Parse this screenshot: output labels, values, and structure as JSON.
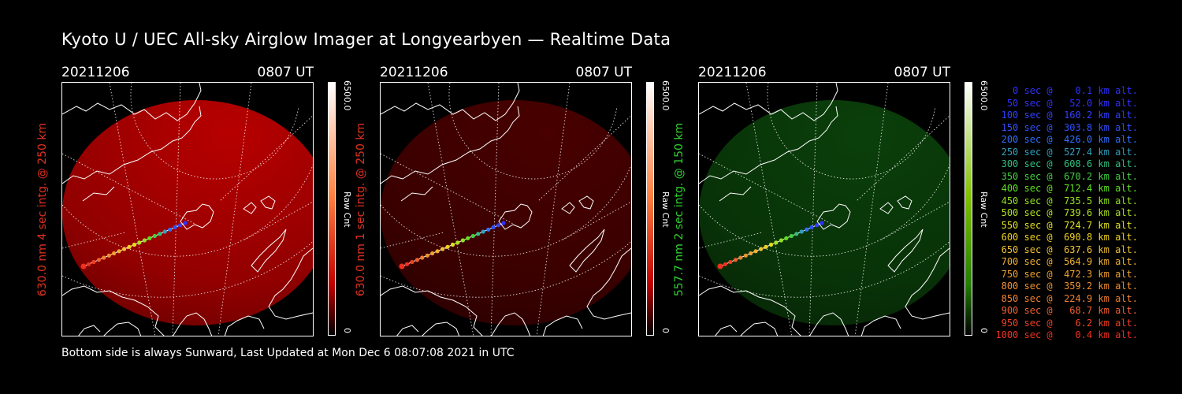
{
  "title": "Kyoto U / UEC All-sky Airglow Imager at Longyearbyen — Realtime Data",
  "footer": "Bottom side is always Sunward, Last Updated at Mon Dec  6 08:07:08 2021 in UTC",
  "panels": [
    {
      "date": "20211206",
      "time": "0807 UT",
      "ylabel": "630.0 nm 4 sec intg. @ 250 km",
      "label_color": "#e03020",
      "cbar_max": "6500.0",
      "cbar_min": "0",
      "cbar_unit": "Raw Cnt",
      "glow": "#c00000",
      "glow_strength": 0.95,
      "bar_top": "#ffffff",
      "bar_mid": "#ff8040",
      "bar_bot": "#c00000"
    },
    {
      "date": "20211206",
      "time": "0807 UT",
      "ylabel": "630.0 nm 1 sec intg. @ 250 km",
      "label_color": "#e03020",
      "cbar_max": "6500.0",
      "cbar_min": "0",
      "cbar_unit": "Raw Cnt",
      "glow": "#600000",
      "glow_strength": 0.75,
      "bar_top": "#ffffff",
      "bar_mid": "#ff8040",
      "bar_bot": "#c00000"
    },
    {
      "date": "20211206",
      "time": "0807 UT",
      "ylabel": "557.7 nm 2 sec intg. @ 150 km",
      "label_color": "#30d030",
      "cbar_max": "6500.0",
      "cbar_min": "0",
      "cbar_unit": "Raw Cnt",
      "glow": "#0c4a0c",
      "glow_strength": 0.85,
      "bar_top": "#ffffff",
      "bar_mid": "#80c000",
      "bar_bot": "#208000"
    }
  ],
  "legend": [
    {
      "text": "0 sec @    0.1 km alt.",
      "color": "#3030ff"
    },
    {
      "text": "50 sec @   52.0 km alt.",
      "color": "#3030ff"
    },
    {
      "text": "100 sec @  160.2 km alt.",
      "color": "#3040ff"
    },
    {
      "text": "150 sec @  303.8 km alt.",
      "color": "#3050ff"
    },
    {
      "text": "200 sec @  426.0 km alt.",
      "color": "#3070ff"
    },
    {
      "text": "250 sec @  527.4 km alt.",
      "color": "#30a0c0"
    },
    {
      "text": "300 sec @  608.6 km alt.",
      "color": "#30c080"
    },
    {
      "text": "350 sec @  670.2 km alt.",
      "color": "#40d040"
    },
    {
      "text": "400 sec @  712.4 km alt.",
      "color": "#60e020"
    },
    {
      "text": "450 sec @  735.5 km alt.",
      "color": "#90e020"
    },
    {
      "text": "500 sec @  739.6 km alt.",
      "color": "#b0e020"
    },
    {
      "text": "550 sec @  724.7 km alt.",
      "color": "#e0e020"
    },
    {
      "text": "600 sec @  690.8 km alt.",
      "color": "#f0d020"
    },
    {
      "text": "650 sec @  637.6 km alt.",
      "color": "#f0c030"
    },
    {
      "text": "700 sec @  564.9 km alt.",
      "color": "#f0b030"
    },
    {
      "text": "750 sec @  472.3 km alt.",
      "color": "#f0a030"
    },
    {
      "text": "800 sec @  359.2 km alt.",
      "color": "#f09030"
    },
    {
      "text": "850 sec @  224.9 km alt.",
      "color": "#f08030"
    },
    {
      "text": "900 sec @   68.7 km alt.",
      "color": "#f06030"
    },
    {
      "text": "950 sec @    6.2 km alt.",
      "color": "#f04020"
    },
    {
      "text": "1000 sec @    0.4 km alt.",
      "color": "#f03020"
    }
  ]
}
